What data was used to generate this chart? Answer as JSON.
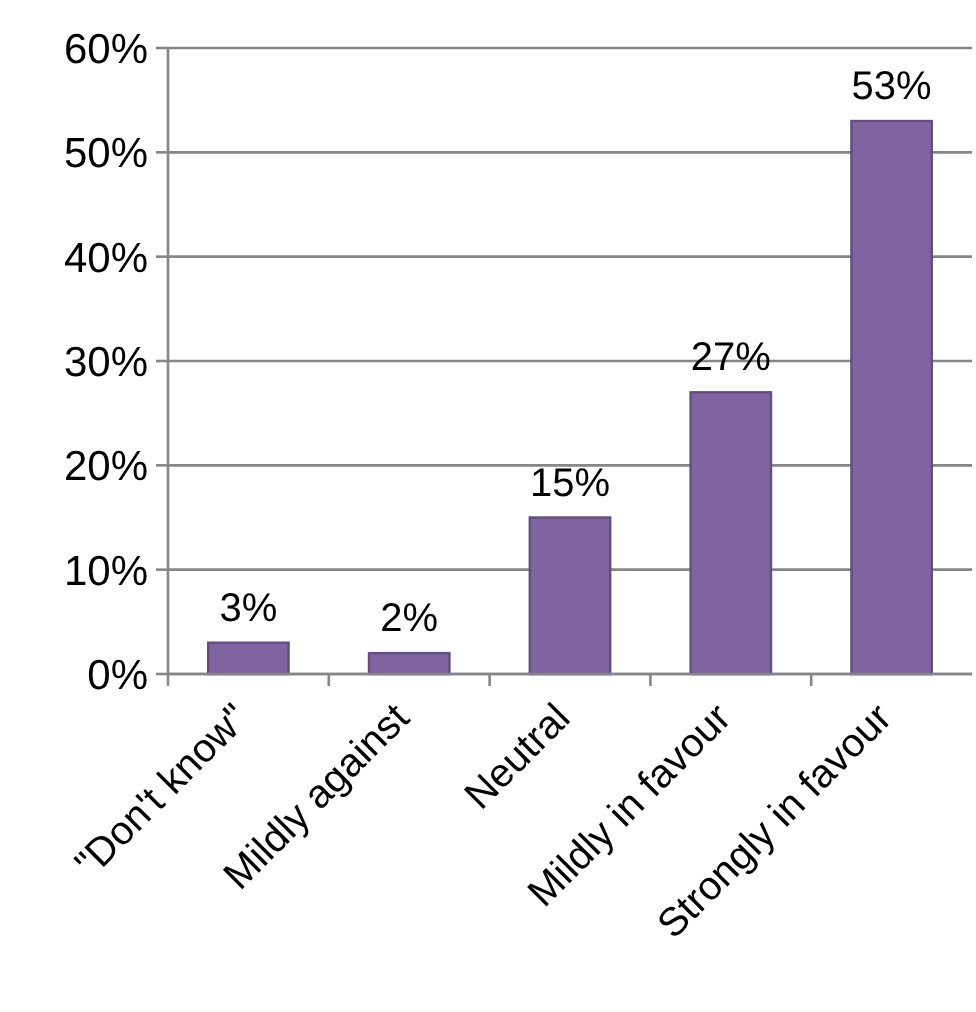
{
  "chart_data": {
    "type": "bar",
    "categories": [
      "\"Don't know\"",
      "Mildly against",
      "Neutral",
      "Mildly in favour",
      "Strongly in favour"
    ],
    "values": [
      3,
      2,
      15,
      27,
      53
    ],
    "color": "#8064a2",
    "value_labels": [
      "3%",
      "2%",
      "15%",
      "27%",
      "53%"
    ],
    "ylim": [
      0,
      60
    ],
    "yticks": [
      {
        "value": 0,
        "label": "0%"
      },
      {
        "value": 10,
        "label": "10%"
      },
      {
        "value": 20,
        "label": "20%"
      },
      {
        "value": 30,
        "label": "30%"
      },
      {
        "value": 40,
        "label": "40%"
      },
      {
        "value": 50,
        "label": "50%"
      },
      {
        "value": 60,
        "label": "60%"
      }
    ],
    "grid": "y"
  }
}
